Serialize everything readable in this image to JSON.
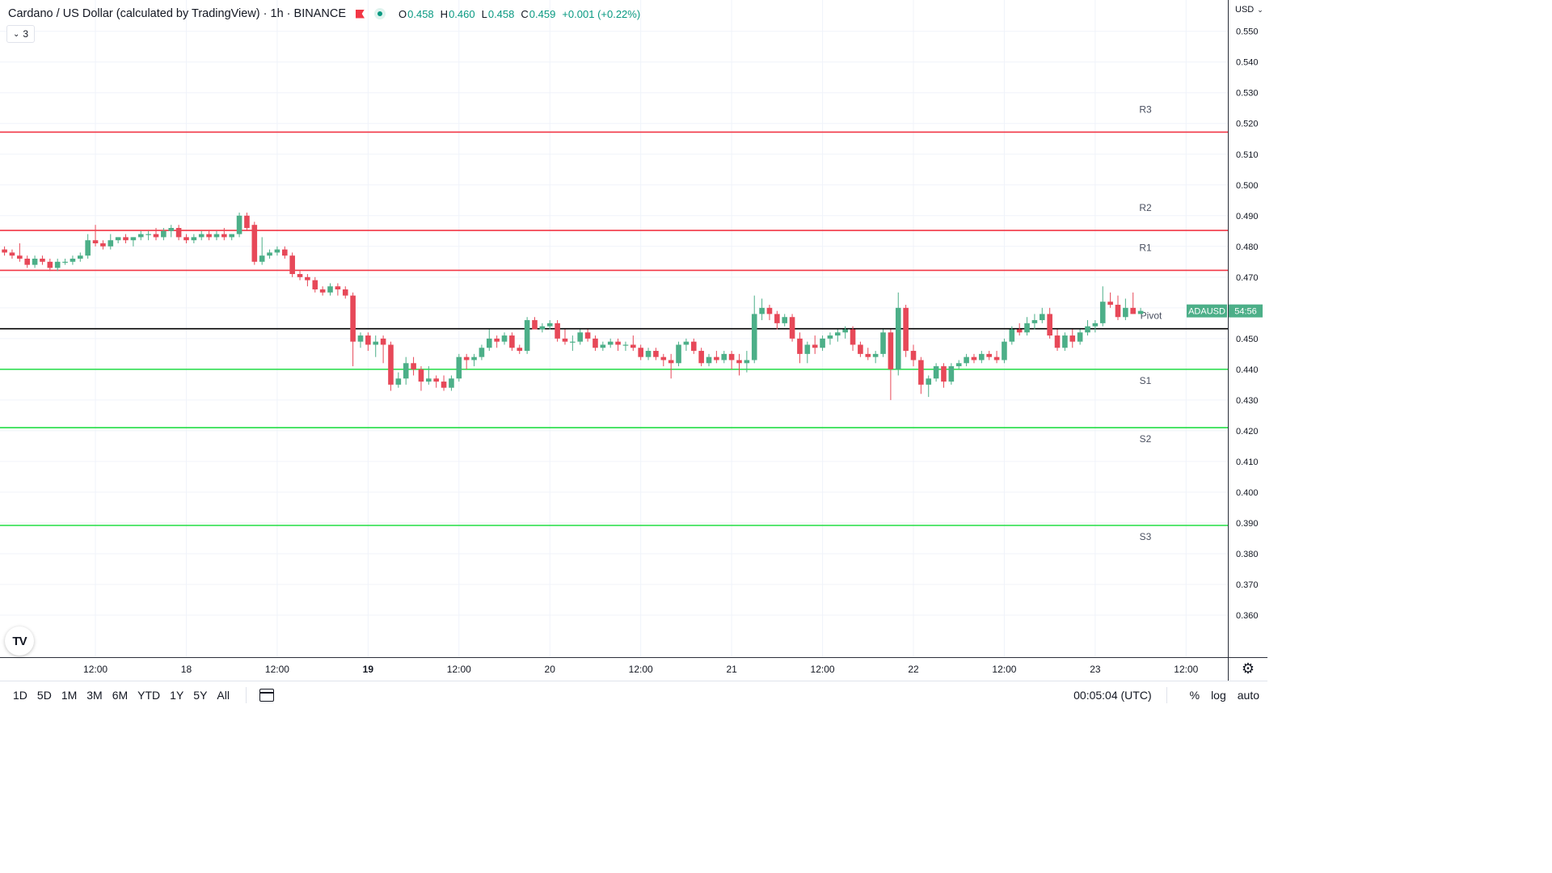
{
  "header": {
    "title": "Cardano / US Dollar (calculated by TradingView) · 1h · BINANCE",
    "ohlc": {
      "o_label": "O",
      "o": "0.458",
      "h_label": "H",
      "h": "0.460",
      "l_label": "L",
      "l": "0.458",
      "c_label": "C",
      "c": "0.459",
      "change": "+0.001 (+0.22%)"
    },
    "indicators_count": "3",
    "currency": "USD"
  },
  "price_label": {
    "symbol": "ADAUSD",
    "countdown": "54:56"
  },
  "bottom_bar": {
    "ranges": [
      "1D",
      "5D",
      "1M",
      "3M",
      "6M",
      "YTD",
      "1Y",
      "5Y",
      "All"
    ],
    "clock": "00:05:04 (UTC)",
    "options": [
      "%",
      "log",
      "auto"
    ]
  },
  "colors": {
    "up": "#4caf88",
    "down": "#e74858",
    "resistance": "#f23645",
    "support": "#22dd44",
    "pivot": "#000000"
  },
  "chart_data": {
    "type": "candlestick",
    "symbol": "ADAUSD",
    "interval": "1h",
    "ylim": [
      0.35,
      0.555
    ],
    "y_ticks": [
      "0.550",
      "0.540",
      "0.530",
      "0.520",
      "0.510",
      "0.500",
      "0.490",
      "0.480",
      "0.470",
      "0.460",
      "0.450",
      "0.440",
      "0.430",
      "0.420",
      "0.410",
      "0.400",
      "0.390",
      "0.380",
      "0.370",
      "0.360"
    ],
    "x_ticks": [
      {
        "i": 12,
        "label": "12:00",
        "bold": false
      },
      {
        "i": 24,
        "label": "18",
        "bold": false
      },
      {
        "i": 36,
        "label": "12:00",
        "bold": false
      },
      {
        "i": 48,
        "label": "19",
        "bold": true
      },
      {
        "i": 60,
        "label": "12:00",
        "bold": false
      },
      {
        "i": 72,
        "label": "20",
        "bold": false
      },
      {
        "i": 84,
        "label": "12:00",
        "bold": false
      },
      {
        "i": 96,
        "label": "21",
        "bold": false
      },
      {
        "i": 108,
        "label": "12:00",
        "bold": false
      },
      {
        "i": 120,
        "label": "22",
        "bold": false
      },
      {
        "i": 132,
        "label": "12:00",
        "bold": false
      },
      {
        "i": 144,
        "label": "23",
        "bold": false
      },
      {
        "i": 156,
        "label": "12:00",
        "bold": false
      }
    ],
    "pivot_levels": [
      {
        "name": "R3",
        "value": 0.5172,
        "kind": "resistance"
      },
      {
        "name": "R2",
        "value": 0.4852,
        "kind": "resistance"
      },
      {
        "name": "R1",
        "value": 0.4722,
        "kind": "resistance"
      },
      {
        "name": "Pivot",
        "value": 0.4532,
        "kind": "pivot"
      },
      {
        "name": "S1",
        "value": 0.44,
        "kind": "support"
      },
      {
        "name": "S2",
        "value": 0.421,
        "kind": "support"
      },
      {
        "name": "S3",
        "value": 0.3892,
        "kind": "support"
      }
    ],
    "last_price": 0.459,
    "candles": [
      [
        0.479,
        0.48,
        0.477,
        0.478
      ],
      [
        0.478,
        0.479,
        0.476,
        0.477
      ],
      [
        0.477,
        0.481,
        0.475,
        0.476
      ],
      [
        0.476,
        0.477,
        0.473,
        0.474
      ],
      [
        0.474,
        0.477,
        0.473,
        0.476
      ],
      [
        0.476,
        0.477,
        0.474,
        0.475
      ],
      [
        0.475,
        0.476,
        0.472,
        0.473
      ],
      [
        0.473,
        0.476,
        0.472,
        0.475
      ],
      [
        0.475,
        0.476,
        0.474,
        0.475
      ],
      [
        0.475,
        0.477,
        0.474,
        0.476
      ],
      [
        0.476,
        0.478,
        0.475,
        0.477
      ],
      [
        0.477,
        0.484,
        0.476,
        0.482
      ],
      [
        0.482,
        0.487,
        0.48,
        0.481
      ],
      [
        0.481,
        0.482,
        0.479,
        0.48
      ],
      [
        0.48,
        0.484,
        0.479,
        0.482
      ],
      [
        0.482,
        0.483,
        0.481,
        0.483
      ],
      [
        0.483,
        0.484,
        0.481,
        0.482
      ],
      [
        0.482,
        0.483,
        0.48,
        0.483
      ],
      [
        0.483,
        0.485,
        0.482,
        0.484
      ],
      [
        0.484,
        0.485,
        0.482,
        0.484
      ],
      [
        0.484,
        0.486,
        0.482,
        0.483
      ],
      [
        0.483,
        0.486,
        0.482,
        0.485
      ],
      [
        0.485,
        0.487,
        0.483,
        0.486
      ],
      [
        0.486,
        0.487,
        0.482,
        0.483
      ],
      [
        0.483,
        0.484,
        0.481,
        0.482
      ],
      [
        0.482,
        0.484,
        0.481,
        0.483
      ],
      [
        0.483,
        0.485,
        0.482,
        0.484
      ],
      [
        0.484,
        0.485,
        0.482,
        0.483
      ],
      [
        0.483,
        0.485,
        0.482,
        0.484
      ],
      [
        0.484,
        0.486,
        0.482,
        0.483
      ],
      [
        0.483,
        0.484,
        0.482,
        0.484
      ],
      [
        0.484,
        0.491,
        0.483,
        0.49
      ],
      [
        0.49,
        0.491,
        0.485,
        0.486
      ],
      [
        0.487,
        0.488,
        0.474,
        0.475
      ],
      [
        0.475,
        0.483,
        0.474,
        0.477
      ],
      [
        0.477,
        0.479,
        0.476,
        0.478
      ],
      [
        0.478,
        0.48,
        0.477,
        0.479
      ],
      [
        0.479,
        0.48,
        0.476,
        0.477
      ],
      [
        0.477,
        0.478,
        0.47,
        0.471
      ],
      [
        0.471,
        0.472,
        0.469,
        0.47
      ],
      [
        0.47,
        0.471,
        0.467,
        0.469
      ],
      [
        0.469,
        0.47,
        0.465,
        0.466
      ],
      [
        0.466,
        0.467,
        0.464,
        0.465
      ],
      [
        0.465,
        0.468,
        0.464,
        0.467
      ],
      [
        0.467,
        0.468,
        0.464,
        0.466
      ],
      [
        0.466,
        0.467,
        0.463,
        0.464
      ],
      [
        0.464,
        0.465,
        0.441,
        0.449
      ],
      [
        0.449,
        0.452,
        0.447,
        0.451
      ],
      [
        0.451,
        0.452,
        0.446,
        0.448
      ],
      [
        0.448,
        0.451,
        0.444,
        0.449
      ],
      [
        0.45,
        0.451,
        0.442,
        0.448
      ],
      [
        0.448,
        0.449,
        0.433,
        0.435
      ],
      [
        0.435,
        0.439,
        0.434,
        0.437
      ],
      [
        0.437,
        0.444,
        0.435,
        0.442
      ],
      [
        0.442,
        0.444,
        0.438,
        0.44
      ],
      [
        0.44,
        0.441,
        0.433,
        0.436
      ],
      [
        0.436,
        0.441,
        0.435,
        0.437
      ],
      [
        0.437,
        0.438,
        0.434,
        0.436
      ],
      [
        0.436,
        0.438,
        0.433,
        0.434
      ],
      [
        0.434,
        0.438,
        0.433,
        0.437
      ],
      [
        0.437,
        0.445,
        0.436,
        0.444
      ],
      [
        0.444,
        0.445,
        0.44,
        0.443
      ],
      [
        0.443,
        0.445,
        0.441,
        0.444
      ],
      [
        0.444,
        0.448,
        0.443,
        0.447
      ],
      [
        0.447,
        0.453,
        0.446,
        0.45
      ],
      [
        0.45,
        0.451,
        0.447,
        0.449
      ],
      [
        0.449,
        0.452,
        0.448,
        0.451
      ],
      [
        0.451,
        0.452,
        0.446,
        0.447
      ],
      [
        0.447,
        0.448,
        0.445,
        0.446
      ],
      [
        0.446,
        0.457,
        0.445,
        0.456
      ],
      [
        0.456,
        0.457,
        0.453,
        0.453
      ],
      [
        0.453,
        0.455,
        0.452,
        0.454
      ],
      [
        0.454,
        0.456,
        0.453,
        0.455
      ],
      [
        0.455,
        0.456,
        0.449,
        0.45
      ],
      [
        0.45,
        0.453,
        0.448,
        0.449
      ],
      [
        0.449,
        0.451,
        0.446,
        0.449
      ],
      [
        0.449,
        0.453,
        0.448,
        0.452
      ],
      [
        0.452,
        0.453,
        0.449,
        0.45
      ],
      [
        0.45,
        0.451,
        0.446,
        0.447
      ],
      [
        0.447,
        0.449,
        0.446,
        0.448
      ],
      [
        0.448,
        0.45,
        0.447,
        0.449
      ],
      [
        0.449,
        0.45,
        0.446,
        0.448
      ],
      [
        0.448,
        0.449,
        0.446,
        0.448
      ],
      [
        0.448,
        0.451,
        0.446,
        0.447
      ],
      [
        0.447,
        0.448,
        0.443,
        0.444
      ],
      [
        0.444,
        0.447,
        0.443,
        0.446
      ],
      [
        0.446,
        0.447,
        0.443,
        0.444
      ],
      [
        0.444,
        0.445,
        0.441,
        0.443
      ],
      [
        0.443,
        0.445,
        0.437,
        0.442
      ],
      [
        0.442,
        0.449,
        0.441,
        0.448
      ],
      [
        0.448,
        0.45,
        0.446,
        0.449
      ],
      [
        0.449,
        0.45,
        0.445,
        0.446
      ],
      [
        0.446,
        0.447,
        0.441,
        0.442
      ],
      [
        0.442,
        0.445,
        0.441,
        0.444
      ],
      [
        0.444,
        0.446,
        0.442,
        0.443
      ],
      [
        0.443,
        0.446,
        0.442,
        0.445
      ],
      [
        0.445,
        0.446,
        0.44,
        0.443
      ],
      [
        0.443,
        0.445,
        0.438,
        0.442
      ],
      [
        0.442,
        0.446,
        0.439,
        0.443
      ],
      [
        0.443,
        0.464,
        0.442,
        0.458
      ],
      [
        0.458,
        0.463,
        0.456,
        0.46
      ],
      [
        0.46,
        0.461,
        0.456,
        0.458
      ],
      [
        0.458,
        0.459,
        0.453,
        0.455
      ],
      [
        0.455,
        0.458,
        0.454,
        0.457
      ],
      [
        0.457,
        0.458,
        0.449,
        0.45
      ],
      [
        0.45,
        0.452,
        0.442,
        0.445
      ],
      [
        0.445,
        0.449,
        0.442,
        0.448
      ],
      [
        0.448,
        0.451,
        0.445,
        0.447
      ],
      [
        0.447,
        0.451,
        0.446,
        0.45
      ],
      [
        0.45,
        0.452,
        0.448,
        0.451
      ],
      [
        0.451,
        0.453,
        0.449,
        0.452
      ],
      [
        0.452,
        0.454,
        0.45,
        0.453
      ],
      [
        0.453,
        0.454,
        0.446,
        0.448
      ],
      [
        0.448,
        0.449,
        0.444,
        0.445
      ],
      [
        0.445,
        0.447,
        0.443,
        0.444
      ],
      [
        0.444,
        0.446,
        0.442,
        0.445
      ],
      [
        0.445,
        0.453,
        0.444,
        0.452
      ],
      [
        0.452,
        0.453,
        0.43,
        0.44
      ],
      [
        0.44,
        0.465,
        0.438,
        0.46
      ],
      [
        0.46,
        0.461,
        0.444,
        0.446
      ],
      [
        0.446,
        0.448,
        0.441,
        0.443
      ],
      [
        0.443,
        0.444,
        0.432,
        0.435
      ],
      [
        0.435,
        0.438,
        0.431,
        0.437
      ],
      [
        0.437,
        0.442,
        0.436,
        0.441
      ],
      [
        0.441,
        0.442,
        0.434,
        0.436
      ],
      [
        0.436,
        0.442,
        0.435,
        0.441
      ],
      [
        0.441,
        0.443,
        0.44,
        0.442
      ],
      [
        0.442,
        0.445,
        0.441,
        0.444
      ],
      [
        0.444,
        0.445,
        0.442,
        0.443
      ],
      [
        0.443,
        0.446,
        0.442,
        0.445
      ],
      [
        0.445,
        0.446,
        0.443,
        0.444
      ],
      [
        0.444,
        0.446,
        0.442,
        0.443
      ],
      [
        0.443,
        0.45,
        0.442,
        0.449
      ],
      [
        0.449,
        0.454,
        0.448,
        0.453
      ],
      [
        0.453,
        0.455,
        0.451,
        0.452
      ],
      [
        0.452,
        0.457,
        0.451,
        0.455
      ],
      [
        0.455,
        0.458,
        0.453,
        0.456
      ],
      [
        0.456,
        0.46,
        0.455,
        0.458
      ],
      [
        0.458,
        0.46,
        0.45,
        0.451
      ],
      [
        0.451,
        0.453,
        0.446,
        0.447
      ],
      [
        0.447,
        0.452,
        0.446,
        0.451
      ],
      [
        0.451,
        0.453,
        0.447,
        0.449
      ],
      [
        0.449,
        0.453,
        0.448,
        0.452
      ],
      [
        0.452,
        0.456,
        0.451,
        0.454
      ],
      [
        0.454,
        0.456,
        0.452,
        0.455
      ],
      [
        0.455,
        0.467,
        0.454,
        0.462
      ],
      [
        0.462,
        0.465,
        0.46,
        0.461
      ],
      [
        0.461,
        0.464,
        0.456,
        0.457
      ],
      [
        0.457,
        0.463,
        0.456,
        0.46
      ],
      [
        0.46,
        0.465,
        0.458,
        0.458
      ],
      [
        0.458,
        0.46,
        0.458,
        0.459
      ]
    ]
  }
}
